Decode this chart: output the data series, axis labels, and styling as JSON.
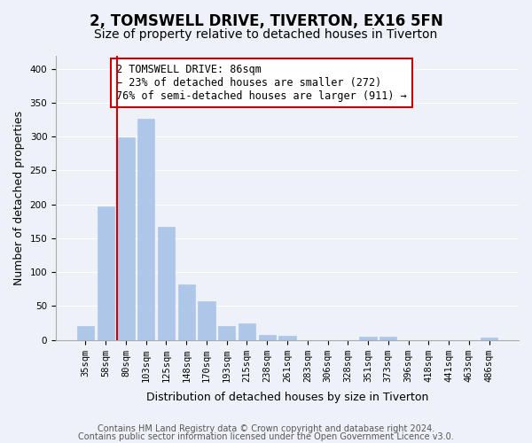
{
  "title": "2, TOMSWELL DRIVE, TIVERTON, EX16 5FN",
  "subtitle": "Size of property relative to detached houses in Tiverton",
  "xlabel": "Distribution of detached houses by size in Tiverton",
  "ylabel": "Number of detached properties",
  "bar_color": "#aec6e8",
  "bar_edge_color": "#aec6e8",
  "background_color": "#eef2f8",
  "categories": [
    "35sqm",
    "58sqm",
    "80sqm",
    "103sqm",
    "125sqm",
    "148sqm",
    "170sqm",
    "193sqm",
    "215sqm",
    "238sqm",
    "261sqm",
    "283sqm",
    "306sqm",
    "328sqm",
    "351sqm",
    "373sqm",
    "396sqm",
    "418sqm",
    "441sqm",
    "463sqm",
    "486sqm"
  ],
  "values": [
    20,
    197,
    299,
    327,
    167,
    82,
    57,
    21,
    24,
    8,
    6,
    0,
    0,
    0,
    5,
    5,
    0,
    0,
    0,
    0,
    3
  ],
  "ylim": [
    0,
    420
  ],
  "yticks": [
    0,
    50,
    100,
    150,
    200,
    250,
    300,
    350,
    400
  ],
  "annotation_title": "2 TOMSWELL DRIVE: 86sqm",
  "annotation_line1": "← 23% of detached houses are smaller (272)",
  "annotation_line2": "76% of semi-detached houses are larger (911) →",
  "annotation_box_color": "#ffffff",
  "annotation_box_edge_color": "#cc0000",
  "vline_color": "#cc0000",
  "vline_x": 1.55,
  "footer_line1": "Contains HM Land Registry data © Crown copyright and database right 2024.",
  "footer_line2": "Contains public sector information licensed under the Open Government Licence v3.0.",
  "grid_color": "#ffffff",
  "title_fontsize": 12,
  "subtitle_fontsize": 10,
  "annotation_fontsize": 8.5,
  "axis_label_fontsize": 9,
  "tick_fontsize": 7.5,
  "footer_fontsize": 7
}
